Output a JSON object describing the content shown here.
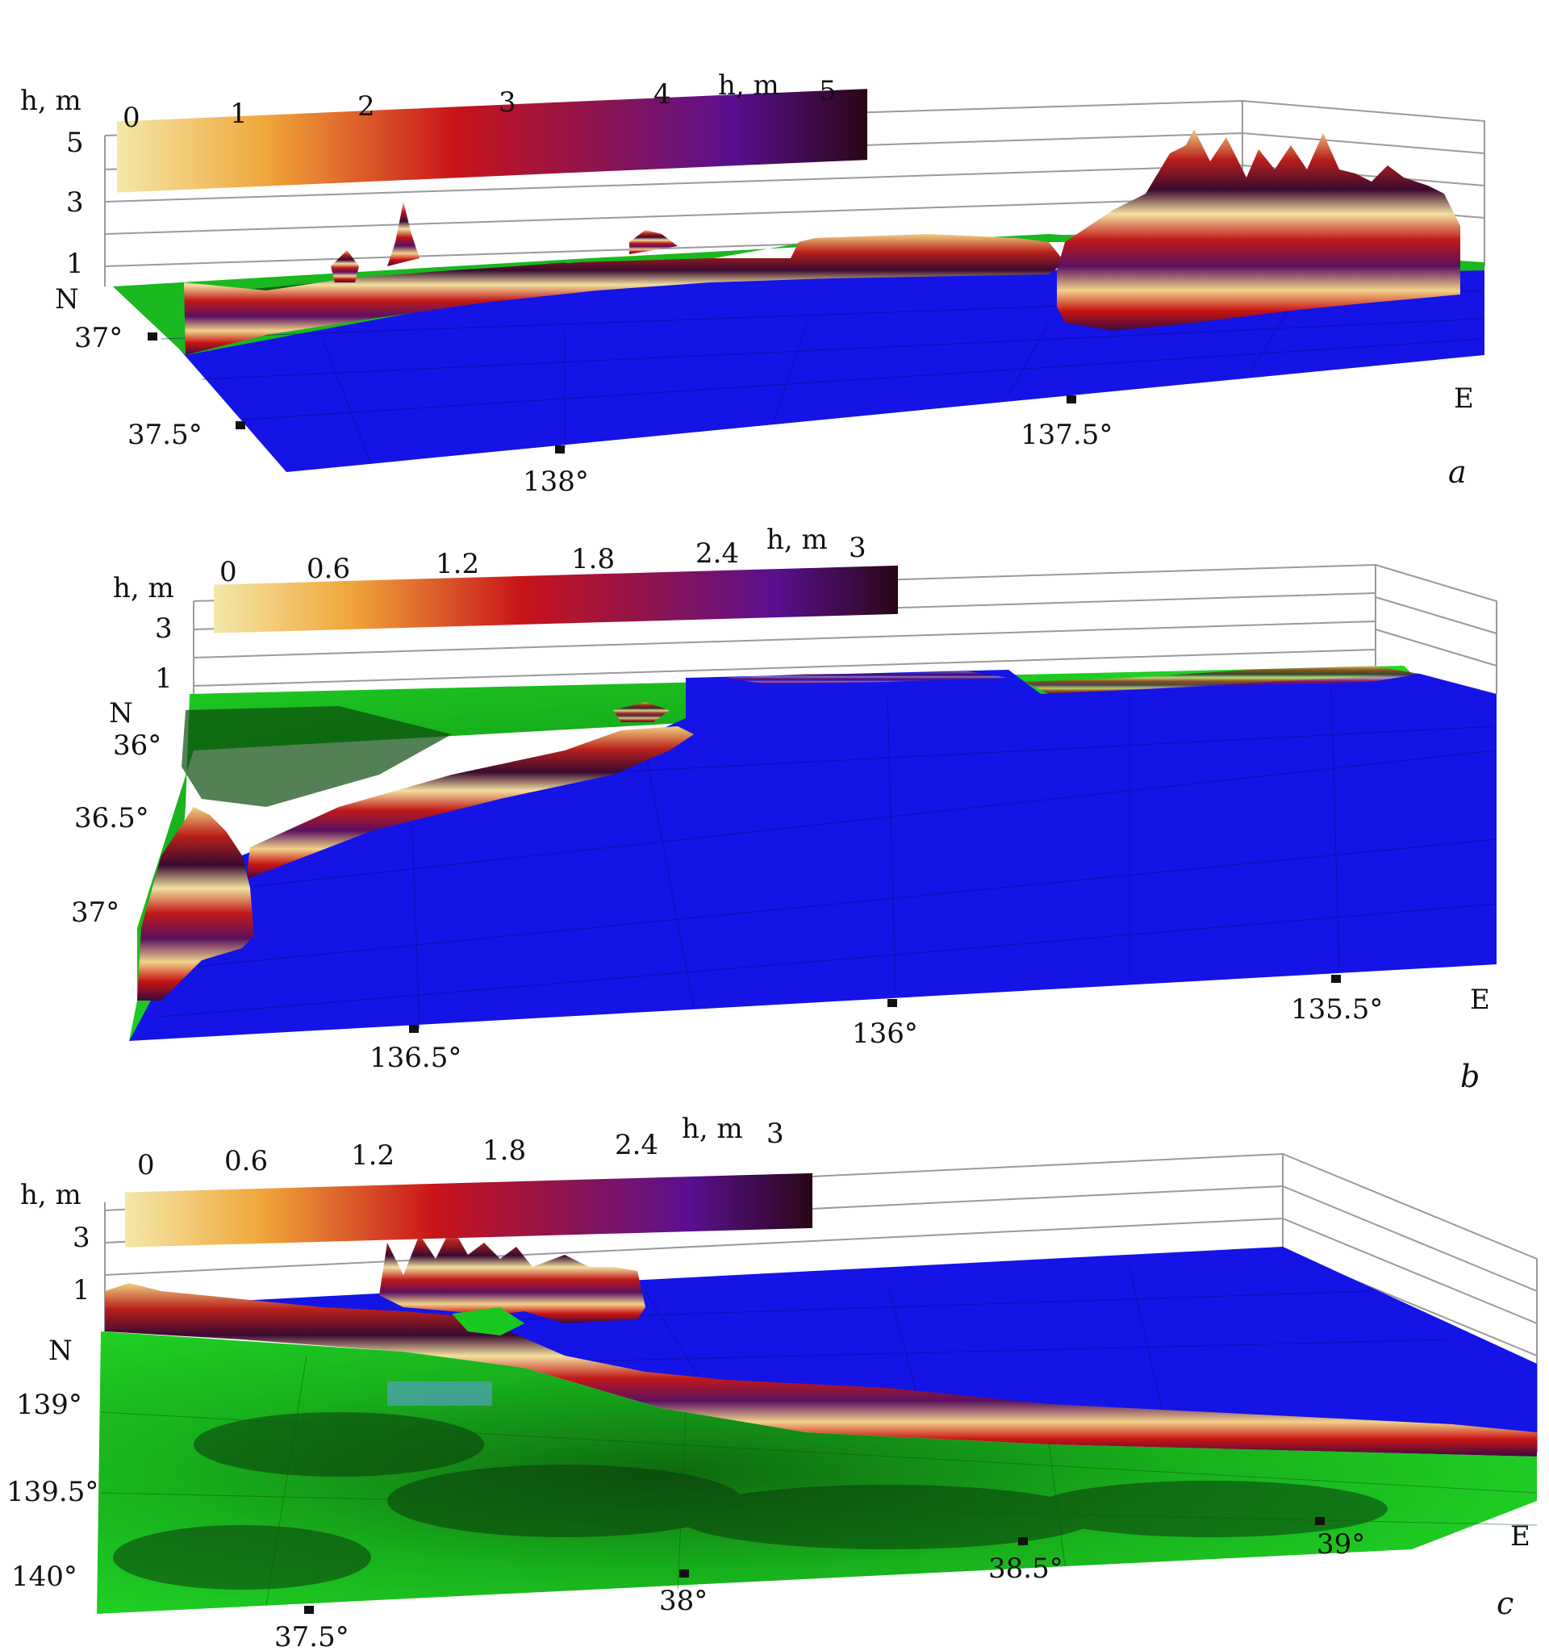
{
  "panels": [
    {
      "id": "a",
      "caption": "a",
      "colorbar_title": "h, m",
      "colorbar_ticks": [
        "0",
        "1",
        "2",
        "3",
        "4",
        "5"
      ],
      "z_axis_title": "h, m",
      "z_ticks": [
        "5",
        "3",
        "1"
      ],
      "north_label": "N",
      "east_label": "E",
      "lat_ticks": [
        "37°",
        "37.5°"
      ],
      "lon_ticks": [
        "138°",
        "137.5°"
      ]
    },
    {
      "id": "b",
      "caption": "b",
      "colorbar_title": "h, m",
      "colorbar_ticks": [
        "0",
        "0.6",
        "1.2",
        "1.8",
        "2.4",
        "3"
      ],
      "z_axis_title": "h, m",
      "z_ticks": [
        "3",
        "1"
      ],
      "north_label": "N",
      "east_label": "E",
      "lat_ticks": [
        "36°",
        "36.5°",
        "37°"
      ],
      "lon_ticks": [
        "136.5°",
        "136°",
        "135.5°"
      ]
    },
    {
      "id": "c",
      "caption": "c",
      "colorbar_title": "h, m",
      "colorbar_ticks": [
        "0",
        "0.6",
        "1.2",
        "1.8",
        "2.4",
        "3"
      ],
      "z_axis_title": "h, m",
      "z_ticks": [
        "3",
        "1"
      ],
      "north_label": "N",
      "east_label": "E",
      "lat_ticks": [
        "139°",
        "139.5°",
        "140°"
      ],
      "lon_ticks": [
        "37.5°",
        "38°",
        "38.5°",
        "39°"
      ]
    }
  ],
  "colors": {
    "sea": "#1414e6",
    "land": "#19c81e",
    "land_dark": "#0a5a0c",
    "colorbar": [
      "#f2e6a0",
      "#f0a030",
      "#c81414",
      "#8c1450",
      "#6a1090",
      "#2a0818"
    ]
  }
}
